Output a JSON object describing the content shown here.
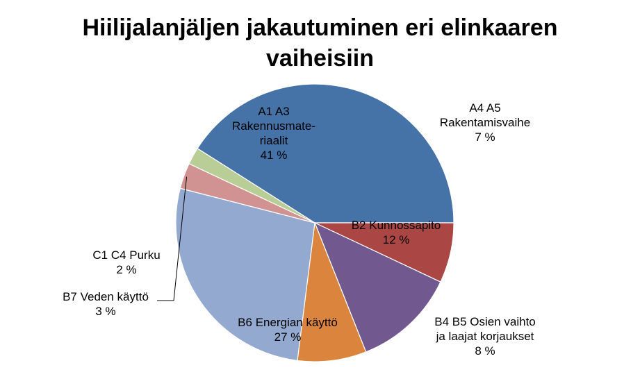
{
  "chart_data": {
    "type": "pie",
    "title_lines": [
      "Hiilijalanjäljen jakautuminen eri elinkaaren",
      "vaiheisiin"
    ],
    "legend": "none",
    "slices": [
      {
        "label_lines": [
          "A1 A3",
          "Rakennusmate-",
          "riaalit"
        ],
        "value": 41,
        "value_text": "41 %",
        "color": "#4572a7"
      },
      {
        "label_lines": [
          "A4 A5",
          "Rakentamisvaihe"
        ],
        "value": 7,
        "value_text": "7 %",
        "color": "#aa4643"
      },
      {
        "label_lines": [
          "B2 Kunnossapito"
        ],
        "value": 12,
        "value_text": "12 %",
        "color": "#71588f"
      },
      {
        "label_lines": [
          "B4 B5 Osien vaihto",
          "ja laajat korjaukset"
        ],
        "value": 8,
        "value_text": "8 %",
        "color": "#db843d"
      },
      {
        "label_lines": [
          "B6 Energian käyttö"
        ],
        "value": 27,
        "value_text": "27 %",
        "color": "#93a9cf"
      },
      {
        "label_lines": [
          "B7 Veden käyttö"
        ],
        "value": 3,
        "value_text": "3 %",
        "color": "#d19392"
      },
      {
        "label_lines": [
          "C1 C4 Purku"
        ],
        "value": 2,
        "value_text": "2 %",
        "color": "#b9cd96"
      }
    ]
  }
}
